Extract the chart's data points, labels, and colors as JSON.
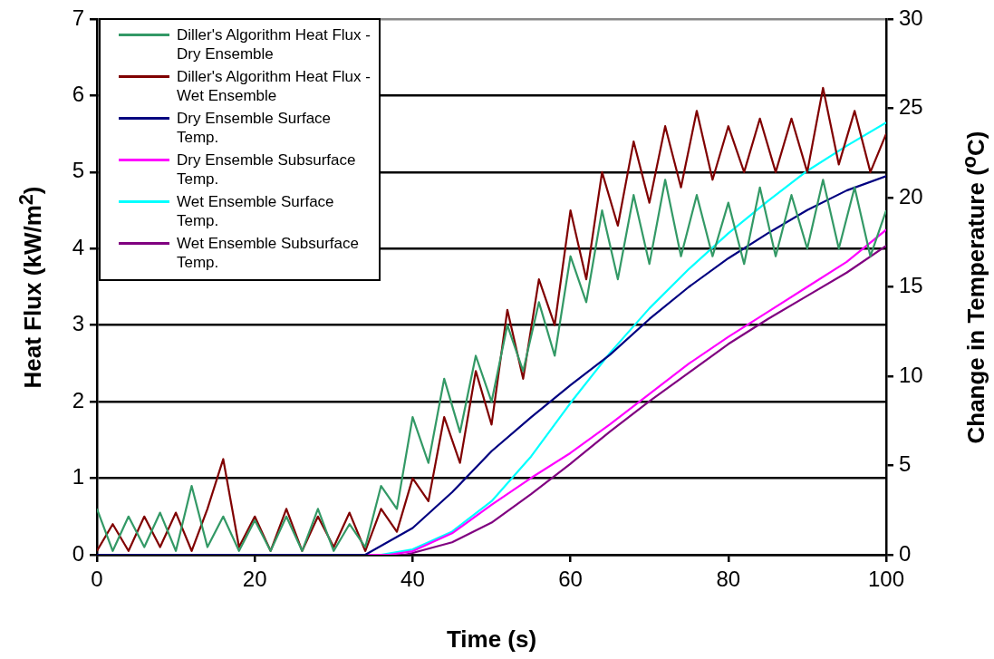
{
  "chart_data": {
    "type": "line",
    "xlabel": "Time (s)",
    "ylabel": "Heat Flux (kW/m$^{2}$)",
    "y2label": "Change in Temperature ($^{o}$C)",
    "xlim": [
      0,
      100
    ],
    "xticks": [
      0,
      20,
      40,
      60,
      80,
      100
    ],
    "ylim": [
      0,
      7
    ],
    "yticks": [
      0,
      1,
      2,
      3,
      4,
      5,
      6,
      7
    ],
    "y2lim": [
      0,
      30
    ],
    "y2ticks": [
      0,
      5,
      10,
      15,
      20,
      25,
      30
    ],
    "grid": "y",
    "legend": "top left",
    "marker": "none",
    "line_style": "solid",
    "series": [
      {
        "name": "Diller's Algorithm Heat Flux - Dry Ensemble",
        "color": "#339966",
        "x": [
          0,
          2,
          4,
          6,
          8,
          10,
          12,
          14,
          16,
          18,
          20,
          22,
          24,
          26,
          28,
          30,
          32,
          34,
          36,
          38,
          40,
          42,
          44,
          46,
          48,
          50,
          52,
          54,
          56,
          58,
          60,
          62,
          64,
          66,
          68,
          70,
          72,
          74,
          76,
          78,
          80,
          82,
          84,
          86,
          88,
          90,
          92,
          94,
          96,
          98,
          100
        ],
        "values": [
          0.6,
          0.05,
          0.5,
          0.1,
          0.55,
          0.05,
          0.9,
          0.1,
          0.5,
          0.05,
          0.45,
          0.05,
          0.5,
          0.05,
          0.6,
          0.05,
          0.4,
          0.1,
          0.9,
          0.6,
          1.8,
          1.2,
          2.3,
          1.6,
          2.6,
          2.0,
          3.0,
          2.4,
          3.3,
          2.6,
          3.9,
          3.3,
          4.5,
          3.6,
          4.7,
          3.8,
          4.9,
          3.9,
          4.7,
          3.9,
          4.6,
          3.8,
          4.8,
          3.9,
          4.7,
          4.0,
          4.9,
          4.0,
          4.8,
          3.9,
          4.5
        ]
      },
      {
        "name": "Diller's Algorithm Heat Flux - Wet Ensemble",
        "color": "#800000",
        "x": [
          0,
          2,
          4,
          6,
          8,
          10,
          12,
          14,
          16,
          18,
          20,
          22,
          24,
          26,
          28,
          30,
          32,
          34,
          36,
          38,
          40,
          42,
          44,
          46,
          48,
          50,
          52,
          54,
          56,
          58,
          60,
          62,
          64,
          66,
          68,
          70,
          72,
          74,
          76,
          78,
          80,
          82,
          84,
          86,
          88,
          90,
          92,
          94,
          96,
          98,
          100
        ],
        "values": [
          0.05,
          0.4,
          0.05,
          0.5,
          0.1,
          0.55,
          0.05,
          0.6,
          1.25,
          0.1,
          0.5,
          0.05,
          0.6,
          0.05,
          0.5,
          0.1,
          0.55,
          0.05,
          0.6,
          0.3,
          1.0,
          0.7,
          1.8,
          1.2,
          2.4,
          1.7,
          3.2,
          2.3,
          3.6,
          3.0,
          4.5,
          3.6,
          5.0,
          4.3,
          5.4,
          4.6,
          5.6,
          4.8,
          5.8,
          4.9,
          5.6,
          5.0,
          5.7,
          5.0,
          5.7,
          5.0,
          6.1,
          5.1,
          5.8,
          5.0,
          5.5
        ]
      },
      {
        "name": "Dry Ensemble Surface Temp.",
        "color": "#000080",
        "axis": "y2",
        "x": [
          0,
          34,
          40,
          45,
          50,
          55,
          60,
          65,
          70,
          75,
          80,
          85,
          90,
          95,
          100
        ],
        "values": [
          0,
          0,
          1.5,
          3.5,
          5.8,
          7.7,
          9.5,
          11.2,
          13.2,
          15.0,
          16.6,
          18.0,
          19.3,
          20.4,
          21.2
        ]
      },
      {
        "name": "Dry Ensemble Subsurface Temp.",
        "color": "#ff00ff",
        "axis": "y2",
        "x": [
          0,
          37,
          40,
          45,
          50,
          55,
          60,
          65,
          70,
          75,
          80,
          85,
          90,
          95,
          100
        ],
        "values": [
          0,
          0,
          0.2,
          1.2,
          2.8,
          4.3,
          5.7,
          7.3,
          9.0,
          10.7,
          12.2,
          13.6,
          15.0,
          16.4,
          18.2
        ]
      },
      {
        "name": "Wet Ensemble Surface Temp.",
        "color": "#00ffff",
        "axis": "y2",
        "x": [
          0,
          36,
          40,
          45,
          50,
          55,
          60,
          65,
          70,
          75,
          80,
          85,
          90,
          95,
          100
        ],
        "values": [
          0,
          0,
          0.3,
          1.3,
          3.0,
          5.5,
          8.5,
          11.3,
          13.8,
          16.0,
          18.0,
          19.8,
          21.5,
          22.9,
          24.2
        ]
      },
      {
        "name": "Wet Ensemble Subsurface Temp.",
        "color": "#800080",
        "axis": "y2",
        "x": [
          0,
          39,
          40,
          45,
          50,
          55,
          60,
          65,
          70,
          75,
          80,
          85,
          90,
          95,
          100
        ],
        "values": [
          0,
          0,
          0.1,
          0.7,
          1.8,
          3.4,
          5.1,
          6.9,
          8.6,
          10.2,
          11.8,
          13.2,
          14.5,
          15.8,
          17.3
        ]
      }
    ]
  }
}
